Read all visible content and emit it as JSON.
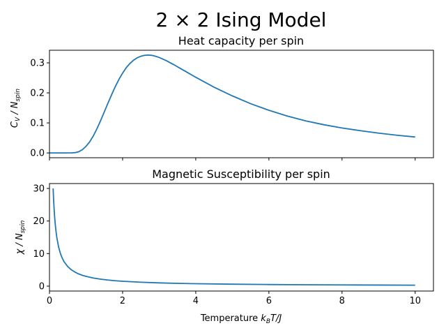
{
  "figure": {
    "title_main": "2 × 2 Ising Model",
    "xlabel_prefix": "Temperature ",
    "xlabel_math_k": "k",
    "xlabel_math_sub": "B",
    "xlabel_math_rest": "T/J"
  },
  "colors": {
    "line": "#1f77b4"
  },
  "chart_data": [
    {
      "type": "line",
      "title": "Heat capacity per spin",
      "ylabel_symbol": "C",
      "ylabel_symbol_sub": "V",
      "ylabel_rest": " / N",
      "ylabel_rest_sub": "spin",
      "xlim": [
        0,
        10.5
      ],
      "ylim": [
        -0.016,
        0.342
      ],
      "yticks": [
        0.0,
        0.1,
        0.2,
        0.3
      ],
      "ytick_labels": [
        "0.0",
        "0.1",
        "0.2",
        "0.3"
      ],
      "xticks": [
        0,
        2,
        4,
        6,
        8,
        10
      ],
      "x": [
        0.0,
        0.2,
        0.4,
        0.6,
        0.7,
        0.8,
        0.9,
        1.0,
        1.1,
        1.2,
        1.3,
        1.4,
        1.5,
        1.6,
        1.7,
        1.8,
        1.9,
        2.0,
        2.1,
        2.2,
        2.3,
        2.4,
        2.5,
        2.6,
        2.7,
        2.8,
        2.9,
        3.0,
        3.2,
        3.4,
        3.6,
        3.8,
        4.0,
        4.5,
        5.0,
        5.5,
        6.0,
        6.5,
        7.0,
        7.5,
        8.0,
        8.5,
        9.0,
        9.5,
        10.0
      ],
      "y": [
        0.0,
        0.0,
        0.0,
        0.0002,
        0.001,
        0.004,
        0.011,
        0.022,
        0.037,
        0.057,
        0.081,
        0.108,
        0.137,
        0.166,
        0.194,
        0.221,
        0.245,
        0.266,
        0.284,
        0.298,
        0.309,
        0.317,
        0.322,
        0.325,
        0.326,
        0.325,
        0.322,
        0.318,
        0.307,
        0.294,
        0.28,
        0.266,
        0.252,
        0.219,
        0.19,
        0.164,
        0.142,
        0.123,
        0.107,
        0.094,
        0.083,
        0.074,
        0.066,
        0.059,
        0.053
      ]
    },
    {
      "type": "line",
      "title": "Magnetic Susceptibility per spin",
      "ylabel_symbol": "χ",
      "ylabel_rest": " / N",
      "ylabel_rest_sub": "spin",
      "xlim": [
        0,
        10.5
      ],
      "ylim": [
        -1.5,
        31.5
      ],
      "yticks": [
        0,
        10,
        20,
        30
      ],
      "ytick_labels": [
        "0",
        "10",
        "20",
        "30"
      ],
      "xticks": [
        0,
        2,
        4,
        6,
        8,
        10
      ],
      "xtick_labels": [
        "0",
        "2",
        "4",
        "6",
        "8",
        "10"
      ],
      "x": [
        0.1,
        0.11,
        0.12,
        0.14,
        0.16,
        0.18,
        0.2,
        0.25,
        0.3,
        0.35,
        0.4,
        0.5,
        0.6,
        0.7,
        0.8,
        0.9,
        1.0,
        1.2,
        1.4,
        1.6,
        1.8,
        2.0,
        2.5,
        3.0,
        3.5,
        4.0,
        5.0,
        6.0,
        7.0,
        8.0,
        9.0,
        10.0
      ],
      "y": [
        30.0,
        27.3,
        25.0,
        21.4,
        18.8,
        16.7,
        15.0,
        12.0,
        10.0,
        8.57,
        7.5,
        6.0,
        5.0,
        4.29,
        3.75,
        3.33,
        3.0,
        2.5,
        2.14,
        1.88,
        1.67,
        1.5,
        1.2,
        1.0,
        0.86,
        0.75,
        0.6,
        0.5,
        0.43,
        0.375,
        0.33,
        0.3
      ]
    }
  ]
}
